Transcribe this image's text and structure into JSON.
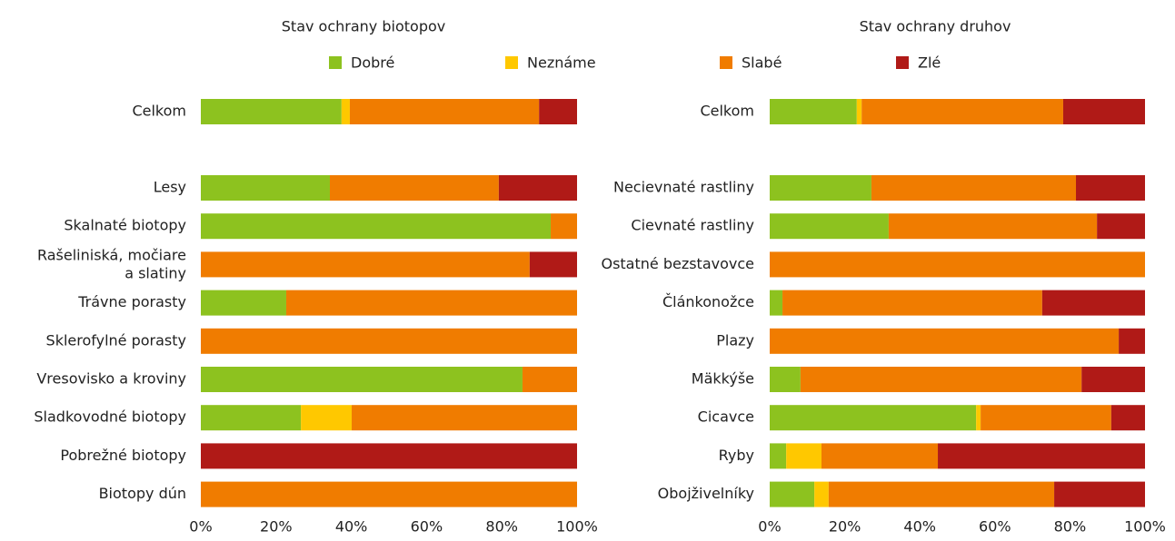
{
  "chart_data": [
    {
      "type": "stacked-bar-horizontal",
      "title": "Stav ochrany biotopov",
      "categories": [
        "Celkom",
        "Lesy",
        "Skalnaté biotopy",
        "Rašeliniská, močiare\na slatiny",
        "Trávne porasty",
        "Sklerofylné porasty",
        "Vresovisko a kroviny",
        "Sladkovodné biotopy",
        "Pobrežné biotopy",
        "Biotopy dún"
      ],
      "series": [
        {
          "name": "Dobré",
          "color": "#8dc21f",
          "values": [
            37.4,
            34.3,
            93.0,
            0,
            22.7,
            0,
            85.5,
            26.6,
            0,
            0
          ]
        },
        {
          "name": "Neznáme",
          "color": "#ffc800",
          "values": [
            2.2,
            0,
            0,
            0,
            0,
            0,
            0,
            13.5,
            0,
            0
          ]
        },
        {
          "name": "Slabé",
          "color": "#f07c00",
          "values": [
            50.3,
            44.9,
            7.0,
            87.4,
            77.3,
            100,
            14.5,
            59.9,
            0,
            100
          ]
        },
        {
          "name": "Zlé",
          "color": "#b01a17",
          "values": [
            10.1,
            20.8,
            0,
            12.6,
            0,
            0,
            0,
            0,
            100,
            0
          ]
        }
      ],
      "xlim": [
        0,
        100
      ],
      "xticks": [
        {
          "value": 0,
          "label": "0%"
        },
        {
          "value": 20,
          "label": "20%"
        },
        {
          "value": 40,
          "label": "40%"
        },
        {
          "value": 60,
          "label": "60%"
        },
        {
          "value": 80,
          "label": "80%"
        },
        {
          "value": 100,
          "label": "100%"
        }
      ]
    },
    {
      "type": "stacked-bar-horizontal",
      "title": "Stav ochrany druhov",
      "categories": [
        "Celkom",
        "Necievnaté rastliny",
        "Cievnaté rastliny",
        "Ostatné bezstavovce",
        "Článkonožce",
        "Plazy",
        "Mäkkýše",
        "Cicavce",
        "Ryby",
        "Obojživelníky"
      ],
      "series": [
        {
          "name": "Dobré",
          "color": "#8dc21f",
          "values": [
            23.2,
            27.1,
            31.7,
            0,
            3.4,
            0,
            8.2,
            55.0,
            4.4,
            11.9
          ]
        },
        {
          "name": "Neznáme",
          "color": "#ffc800",
          "values": [
            1.3,
            0,
            0,
            0,
            0,
            0,
            0,
            1.2,
            9.4,
            3.8
          ]
        },
        {
          "name": "Slabé",
          "color": "#f07c00",
          "values": [
            53.7,
            54.5,
            55.5,
            100,
            69.2,
            93.0,
            74.9,
            34.8,
            31.0,
            60.1
          ]
        },
        {
          "name": "Zlé",
          "color": "#b01a17",
          "values": [
            21.8,
            18.4,
            12.8,
            0,
            27.4,
            7.0,
            16.9,
            9.0,
            55.2,
            24.2
          ]
        }
      ],
      "xlim": [
        0,
        100
      ],
      "xticks": [
        {
          "value": 0,
          "label": "0%"
        },
        {
          "value": 20,
          "label": "20%"
        },
        {
          "value": 40,
          "label": "40%"
        },
        {
          "value": 60,
          "label": "60%"
        },
        {
          "value": 80,
          "label": "80%"
        },
        {
          "value": 100,
          "label": "100%"
        }
      ]
    }
  ]
}
